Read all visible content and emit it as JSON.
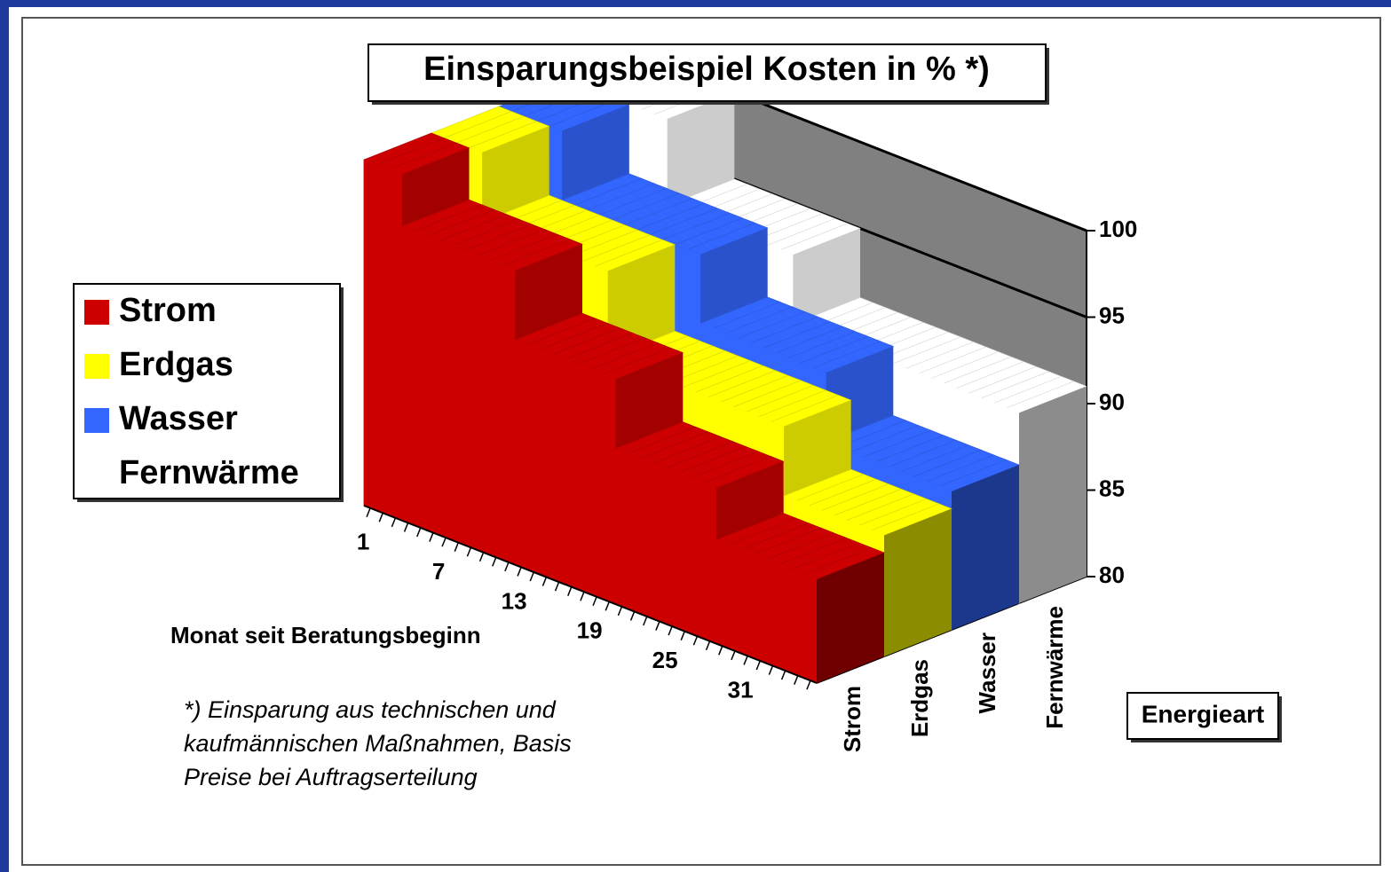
{
  "chart_data": {
    "type": "area3d",
    "title": "Einsparungsbeispiel Kosten in % *)",
    "x_label": "Monat seit Beratungsbeginn",
    "depth_label": "Energieart",
    "footnote": [
      "*) Einsparung aus technischen und",
      "kaufmännischen Maßnahmen, Basis",
      "Preise bei Auftragserteilung"
    ],
    "x": [
      1,
      2,
      3,
      4,
      5,
      6,
      7,
      8,
      9,
      10,
      11,
      12,
      13,
      14,
      15,
      16,
      17,
      18,
      19,
      20,
      21,
      22,
      23,
      24,
      25,
      26,
      27,
      28,
      29,
      30,
      31,
      32,
      33,
      34,
      35,
      36
    ],
    "xlim": [
      0.5,
      36.5
    ],
    "xticks": [
      1,
      7,
      13,
      19,
      25,
      31
    ],
    "ylim": [
      80,
      100
    ],
    "yticks": [
      80,
      85,
      90,
      95,
      100
    ],
    "grid": true,
    "legend": "left",
    "series": [
      {
        "name": "Strom",
        "color": "#cc0000",
        "values": [
          100,
          100,
          100,
          97,
          97,
          97,
          97,
          97,
          97,
          97,
          97,
          97,
          93,
          93,
          93,
          93,
          93,
          93,
          93,
          93,
          89,
          89,
          89,
          89,
          89,
          89,
          89,
          89,
          86,
          86,
          86,
          86,
          86,
          86,
          86,
          86
        ]
      },
      {
        "name": "Erdgas",
        "color": "#ffff00",
        "values": [
          100,
          100,
          100,
          100,
          96,
          96,
          96,
          96,
          96,
          96,
          96,
          96,
          96,
          96,
          91,
          91,
          91,
          91,
          91,
          91,
          91,
          91,
          91,
          91,
          91,
          91,
          91,
          91,
          87,
          87,
          87,
          87,
          87,
          87,
          87,
          87
        ]
      },
      {
        "name": "Wasser",
        "color": "#3366ff",
        "values": [
          100,
          100,
          100,
          100,
          100,
          96,
          96,
          96,
          96,
          96,
          96,
          96,
          96,
          96,
          96,
          96,
          92,
          92,
          92,
          92,
          92,
          92,
          92,
          92,
          92,
          92,
          88,
          88,
          88,
          88,
          88,
          88,
          88,
          88,
          88,
          88
        ]
      },
      {
        "name": "Fernwärme",
        "color": "#ffffff",
        "values": [
          100,
          100,
          100,
          100,
          100,
          100,
          100,
          100,
          95,
          95,
          95,
          95,
          95,
          95,
          95,
          95,
          95,
          95,
          91,
          91,
          91,
          91,
          91,
          91,
          91,
          91,
          91,
          91,
          91,
          91,
          91,
          91,
          91,
          91,
          91,
          91
        ]
      }
    ]
  }
}
